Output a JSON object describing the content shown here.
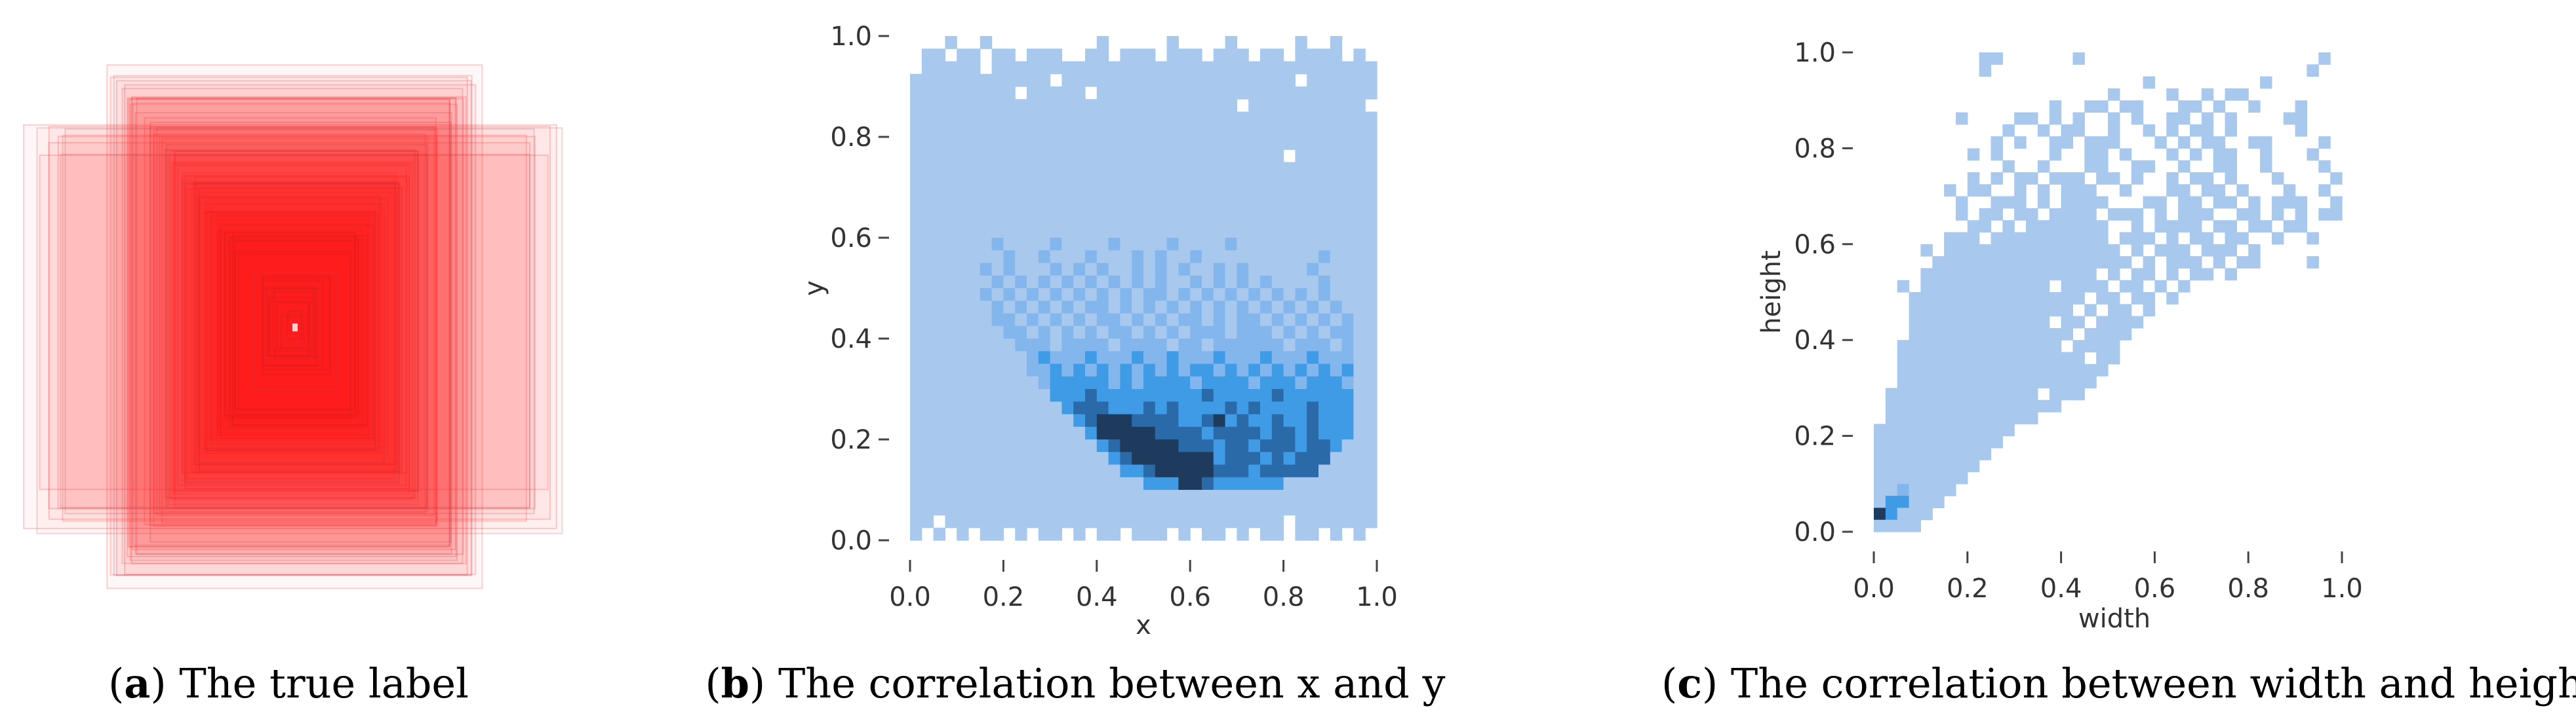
{
  "captions": [
    {
      "letter": "a",
      "text": "The true label"
    },
    {
      "letter": "b",
      "text": "The correlation between x and y"
    },
    {
      "letter": "c",
      "text": "The correlation between width and height"
    }
  ],
  "colors": {
    "box": "#ff2a2a",
    "levels": [
      "#ffffff",
      "#a9c8ee",
      "#84b6ee",
      "#3f9be6",
      "#2a6aa8",
      "#1e3a5c"
    ]
  },
  "chart_data": [
    {
      "type": "image",
      "panel": "a",
      "description_shown": "overlapping red bounding boxes",
      "box_color": "#ff2a2a"
    },
    {
      "type": "heatmap",
      "panel": "b",
      "xlabel": "x",
      "ylabel": "y",
      "xlim": [
        0,
        1
      ],
      "ylim": [
        0,
        1
      ],
      "xticks": [
        "0.0",
        "0.2",
        "0.4",
        "0.6",
        "0.8",
        "1.0"
      ],
      "yticks": [
        "0.0",
        "0.2",
        "0.4",
        "0.6",
        "0.8",
        "1.0"
      ],
      "bins": 40,
      "grid": false,
      "density_levels_top_to_bottom": [
        "0001001000000000100000100001000001001000",
        "0110110110111001101110111011101101111010",
        "0111110111111111111111111111111111111111",
        "1111111111110111111111111111111110111111",
        "1111111110111110111111111111111111111111",
        "1111111111111111111111111111011111111110",
        "1111111111111111111111111111111111111111",
        "1111111111111111111111111111111111111111",
        "1111111111111111111111111111111111111111",
        "1111111111111111111111111111111101111111",
        "1111111111111111111111111111111111111111",
        "1111111111111111111111111111111111111111",
        "1111111111111111111111111111111111111111",
        "1111111111111111111111111111111111111111",
        "1111111111111111111111111111111111111111",
        "1111111111111111111111111111111111111111",
        "1111111211112111121111211112111111111111",
        "1111111121121112111212112111111111121111",
        "1111112121112121211212121121211111211111",
        "1111111212121212121212112121212111121111",
        "1111112121212121212122121212121212121111",
        "1111111212121212212121212121212121212111",
        "1111111221212121221212122121221212121211",
        "1111111122121212122121212221222121212211",
        "1111111112221222212222122122222212221211",
        "1111111111232223222322322232223222322211",
        "1111111111223232323232323323232323232311",
        "1111111111123333323233332333323332333211",
        "1111111111113334333333333433333433333311",
        "1111111111111344433343433334343333433311",
        "1111111111111134555444433453433433433311",
        "1111111111111113555554444344443443433311",
        "1111111111111111345555544434434443443111",
        "1111111111111111134555555534443434441111",
        "1111111111111111113345555544434444411111",
        "1111111111111111111133355433333311111111",
        "1111111111111111111111111111111111111111",
        "1111111111111111111111111111111111111111",
        "1101111111111111111111111111111101111111",
        "1010101101011010110111010110101101101010"
      ]
    },
    {
      "type": "heatmap",
      "panel": "c",
      "xlabel": "width",
      "ylabel": "height",
      "xlim": [
        0,
        1
      ],
      "ylim": [
        0,
        1
      ],
      "xticks": [
        "0.0",
        "0.2",
        "0.4",
        "0.6",
        "0.8",
        "1.0"
      ],
      "yticks": [
        "0.0",
        "0.2",
        "0.4",
        "0.6",
        "0.8",
        "1.0"
      ],
      "bins": 40,
      "grid": false,
      "density_levels_top_to_bottom": [
        "0000000001100000010000000000000000000010",
        "0000000001000000000000000000000000000100",
        "0000000000000000000000010000000001000000",
        "0000000000000000000010000100101100000000",
        "0000000000000001001101100011010010001000",
        "0000000100001101010010100110101000011000",
        "0000000000010010110010010101101000001000",
        "0000000000101001101110001010110011000010",
        "0000000010100001001101000101011001000100",
        "0000000000010010001100110010011001000010",
        "0000000010101101110110100101101000100001",
        "0000001011001010111001000110110100010010",
        "0000000100111010111100011011011010111001",
        "0000000101101101111011101011100110101011",
        "0000000011010111111100101111011011011000",
        "0000001110111111111101110101101100100100",
        "0000101111111111111110101110111010000000",
        "0000011111111111111111010111010110000100",
        "0000111111111111111010110101101000000000",
        "0010111111111110111101101010000000000000",
        "0001111111111111110110110100000000000000",
        "0001111111111111101011010000000000000000",
        "0001111111111110110111100000000000000000",
        "0001111111111111101111000000000000000000",
        "0011111111111111011110000000000000000000",
        "0011111111111111110110000000000000000000",
        "0011111111111111111100000000000000000000",
        "0011111111111111111000000000000000000000",
        "0111111111111101110000000000000000000000",
        "0111111111111111000000000000000000000000",
        "0111111111111100000000000000000000000000",
        "1111111111110000000000000000000000000000",
        "1111111111100000000000000000000000000000",
        "1111111111000000000000000000000000000000",
        "1111111110000000000000000000000000000000",
        "1111111100000000000000000000000000000000",
        "1121111000000000000000000000000000000000",
        "1331110000000000000000000000000000000000",
        "5311100000000000000000000000000000000000",
        "1111000000000000000000000000000000000000"
      ]
    }
  ]
}
